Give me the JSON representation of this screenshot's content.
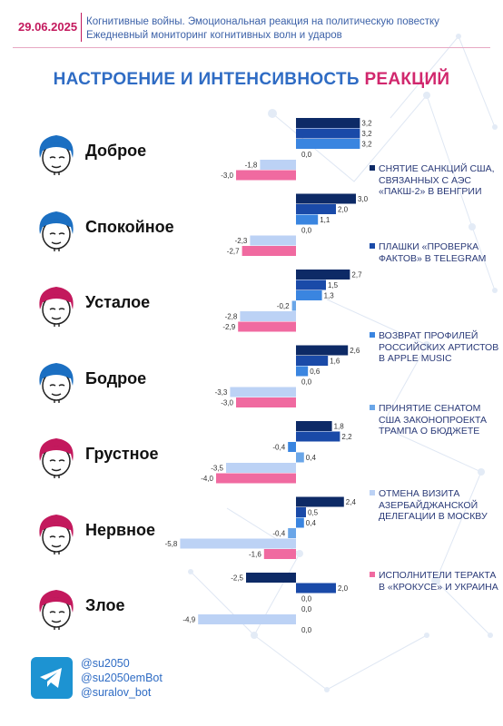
{
  "header": {
    "date": "29.06.2025",
    "line1": "Когнитивные войны. Эмоциональная реакция на политическую повестку",
    "line2": "Ежедневный мониторинг когнитивных волн и ударов"
  },
  "title": {
    "part1": "НАСТРОЕНИЕ И ИНТЕНСИВНОСТЬ",
    "part2": "РЕАКЦИЙ"
  },
  "colors": {
    "series": [
      "#0d2a66",
      "#1a4aa8",
      "#3a85e0",
      "#6aa6e8",
      "#bcd2f5",
      "#f06aa0"
    ],
    "accent": "#c3195d",
    "title_blue": "#2f6cc4",
    "face_blue": "#1b6fc2",
    "face_red": "#c3195d"
  },
  "chart_data": {
    "type": "bar",
    "orientation": "horizontal",
    "categories": [
      "Доброе",
      "Спокойное",
      "Усталое",
      "Бодрое",
      "Грустное",
      "Нервное",
      "Злое"
    ],
    "series": [
      {
        "name": "СНЯТИЕ САНКЦИЙ США, СВЯЗАННЫХ С АЭС «ПАКШ-2» В ВЕНГРИИ",
        "values": [
          3.2,
          3.0,
          2.7,
          2.6,
          1.8,
          2.4,
          -2.5
        ]
      },
      {
        "name": "ПЛАШКИ «ПРОВЕРКА ФАКТОВ» В TELEGRAM",
        "values": [
          3.2,
          2.0,
          1.5,
          1.6,
          2.2,
          0.5,
          2.0
        ]
      },
      {
        "name": "ВОЗВРАТ ПРОФИЛЕЙ РОССИЙСКИХ АРТИСТОВ В APPLE MUSIC",
        "values": [
          3.2,
          1.1,
          1.3,
          0.6,
          -0.4,
          0.4,
          0.0
        ]
      },
      {
        "name": "ПРИНЯТИЕ СЕНАТОМ США ЗАКОНОПРОЕКТА ТРАМПА О БЮДЖЕТЕ",
        "values": [
          0.0,
          0.0,
          -0.2,
          0.0,
          0.4,
          -0.4,
          0.0
        ]
      },
      {
        "name": "ОТМЕНА ВИЗИТА АЗЕРБАЙДЖАНСКОЙ ДЕЛЕГАЦИИ В МОСКВУ",
        "values": [
          -1.8,
          -2.3,
          -2.8,
          -3.3,
          -3.5,
          -5.8,
          -4.9
        ]
      },
      {
        "name": "ИСПОЛНИТЕЛИ ТЕРАКТА В «КРОКУСЕ» И УКРАИНА",
        "values": [
          -3.0,
          -2.7,
          -2.9,
          -3.0,
          -4.0,
          -1.6,
          0.0
        ]
      }
    ],
    "value_labels": [
      [
        "3,2",
        "3,2",
        "3,2",
        "0,0",
        "-1,8",
        "-3,0"
      ],
      [
        "3,0",
        "2,0",
        "1,1",
        "0,0",
        "-2,3",
        "-2,7"
      ],
      [
        "2,7",
        "1,5",
        "1,3",
        "-0,2",
        "-2,8",
        "-2,9"
      ],
      [
        "2,6",
        "1,6",
        "0,6",
        "0,0",
        "-3,3",
        "-3,0"
      ],
      [
        "1,8",
        "2,2",
        "-0,4",
        "0,4",
        "-3,5",
        "-4,0"
      ],
      [
        "2,4",
        "0,5",
        "0,4",
        "-0,4",
        "-5,8",
        "-1,6"
      ],
      [
        "-2,5",
        "2,0",
        "0,0",
        "0,0",
        "-4,9",
        "0,0"
      ]
    ],
    "legend_position": "right",
    "grid": false
  },
  "faces": [
    "face-blue",
    "face-blue",
    "face-red",
    "face-blue",
    "face-red",
    "face-red",
    "face-red"
  ],
  "social": {
    "icon": "telegram-icon",
    "handles": [
      "@su2050",
      "@su2050emBot",
      "@suralov_bot"
    ]
  }
}
